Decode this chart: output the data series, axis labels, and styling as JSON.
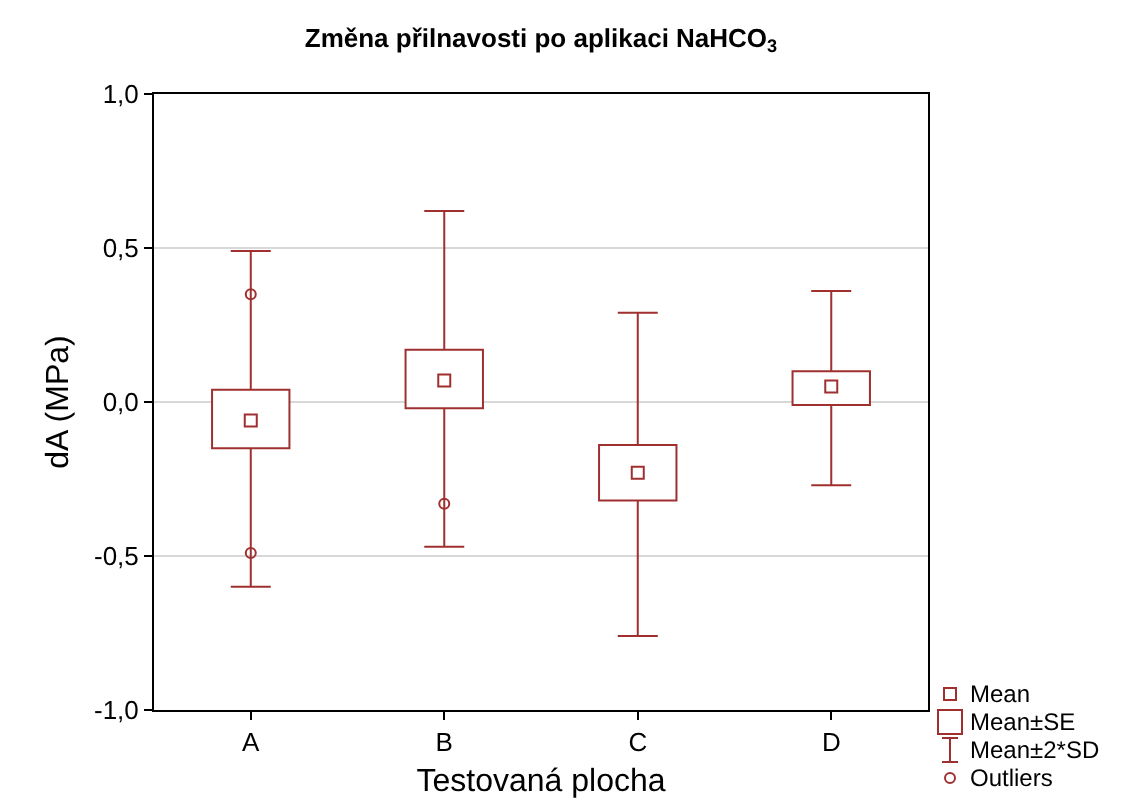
{
  "chart_data": {
    "type": "box",
    "title": "Změna přilnavosti po aplikaci NaHCO$_{3}$",
    "xlabel": "Testovaná plocha",
    "ylabel": "dA (MPa)",
    "categories": [
      "A",
      "B",
      "C",
      "D"
    ],
    "color": "#a03030",
    "boxes": [
      {
        "low": -0.6,
        "q1": -0.15,
        "median": -0.06,
        "q3": 0.04,
        "high": 0.49,
        "outliers": [
          0.35,
          -0.49
        ]
      },
      {
        "low": -0.47,
        "q1": -0.02,
        "median": 0.07,
        "q3": 0.17,
        "high": 0.62,
        "outliers": [
          -0.33
        ]
      },
      {
        "low": -0.76,
        "q1": -0.32,
        "median": -0.23,
        "q3": -0.14,
        "high": 0.29
      },
      {
        "low": -0.27,
        "q1": -0.01,
        "median": 0.05,
        "q3": 0.1,
        "high": 0.36
      }
    ],
    "ylim": [
      -1,
      1
    ],
    "yticks": [
      {
        "value": -1,
        "label": "-1,0"
      },
      {
        "value": -0.5,
        "label": "-0,5"
      },
      {
        "value": 0,
        "label": "0,0"
      },
      {
        "value": 0.5,
        "label": "0,5"
      },
      {
        "value": 1,
        "label": "1,0"
      }
    ],
    "grid": "y",
    "annotations": [
      "Mean",
      "Mean±SE",
      "Mean±2*SD",
      "Outliers"
    ]
  }
}
